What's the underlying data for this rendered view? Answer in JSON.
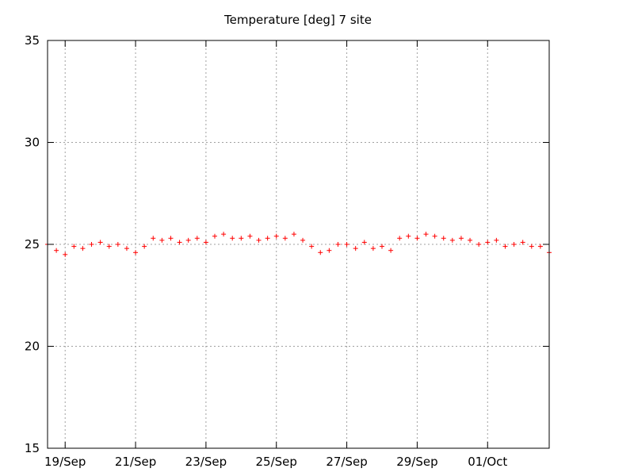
{
  "chart_data": {
    "type": "scatter",
    "title": "Temperature [deg] 7 site",
    "xlabel": "",
    "ylabel": "",
    "ylim": [
      15,
      35
    ],
    "yticks": [
      15,
      20,
      25,
      30,
      35
    ],
    "xlim": [
      "2015-09-18T12:00",
      "2015-10-02T18:00"
    ],
    "xticks": [
      {
        "label": "19/Sep",
        "date": "2015-09-19"
      },
      {
        "label": "21/Sep",
        "date": "2015-09-21"
      },
      {
        "label": "23/Sep",
        "date": "2015-09-23"
      },
      {
        "label": "25/Sep",
        "date": "2015-09-25"
      },
      {
        "label": "27/Sep",
        "date": "2015-09-27"
      },
      {
        "label": "29/Sep",
        "date": "2015-09-29"
      },
      {
        "label": "01/Oct",
        "date": "2015-10-01"
      }
    ],
    "grid": true,
    "marker": "+",
    "series_color": "#ff0000",
    "series": [
      {
        "x": [
          "2015-09-18T12:00",
          "2015-09-18T18:00",
          "2015-09-19T00:00",
          "2015-09-19T06:00",
          "2015-09-19T12:00",
          "2015-09-19T18:00",
          "2015-09-20T00:00",
          "2015-09-20T06:00",
          "2015-09-20T12:00",
          "2015-09-20T18:00",
          "2015-09-21T00:00",
          "2015-09-21T06:00",
          "2015-09-21T12:00",
          "2015-09-21T18:00",
          "2015-09-22T00:00",
          "2015-09-22T06:00",
          "2015-09-22T12:00",
          "2015-09-22T18:00",
          "2015-09-23T00:00",
          "2015-09-23T06:00",
          "2015-09-23T12:00",
          "2015-09-23T18:00",
          "2015-09-24T00:00",
          "2015-09-24T06:00",
          "2015-09-24T12:00",
          "2015-09-24T18:00",
          "2015-09-25T00:00",
          "2015-09-25T06:00",
          "2015-09-25T12:00",
          "2015-09-25T18:00",
          "2015-09-26T00:00",
          "2015-09-26T06:00",
          "2015-09-26T12:00",
          "2015-09-26T18:00",
          "2015-09-27T00:00",
          "2015-09-27T06:00",
          "2015-09-27T12:00",
          "2015-09-27T18:00",
          "2015-09-28T00:00",
          "2015-09-28T06:00",
          "2015-09-28T12:00",
          "2015-09-28T18:00",
          "2015-09-29T00:00",
          "2015-09-29T06:00",
          "2015-09-29T12:00",
          "2015-09-29T18:00",
          "2015-09-30T00:00",
          "2015-09-30T06:00",
          "2015-09-30T12:00",
          "2015-09-30T18:00",
          "2015-10-01T00:00",
          "2015-10-01T06:00",
          "2015-10-01T12:00",
          "2015-10-01T18:00",
          "2015-10-02T00:00",
          "2015-10-02T06:00",
          "2015-10-02T12:00",
          "2015-10-02T18:00"
        ],
        "y": [
          25.0,
          24.7,
          24.5,
          24.9,
          24.8,
          25.0,
          25.1,
          24.9,
          25.0,
          24.8,
          24.6,
          24.9,
          25.3,
          25.2,
          25.3,
          25.1,
          25.2,
          25.3,
          25.1,
          25.4,
          25.5,
          25.3,
          25.3,
          25.4,
          25.2,
          25.3,
          25.4,
          25.3,
          25.5,
          25.2,
          24.9,
          24.6,
          24.7,
          25.0,
          25.0,
          24.8,
          25.1,
          24.8,
          24.9,
          24.7,
          25.3,
          25.4,
          25.3,
          25.5,
          25.4,
          25.3,
          25.2,
          25.3,
          25.2,
          25.0,
          25.1,
          25.2,
          24.9,
          25.0,
          25.1,
          24.9,
          24.9,
          24.6
        ]
      }
    ]
  }
}
